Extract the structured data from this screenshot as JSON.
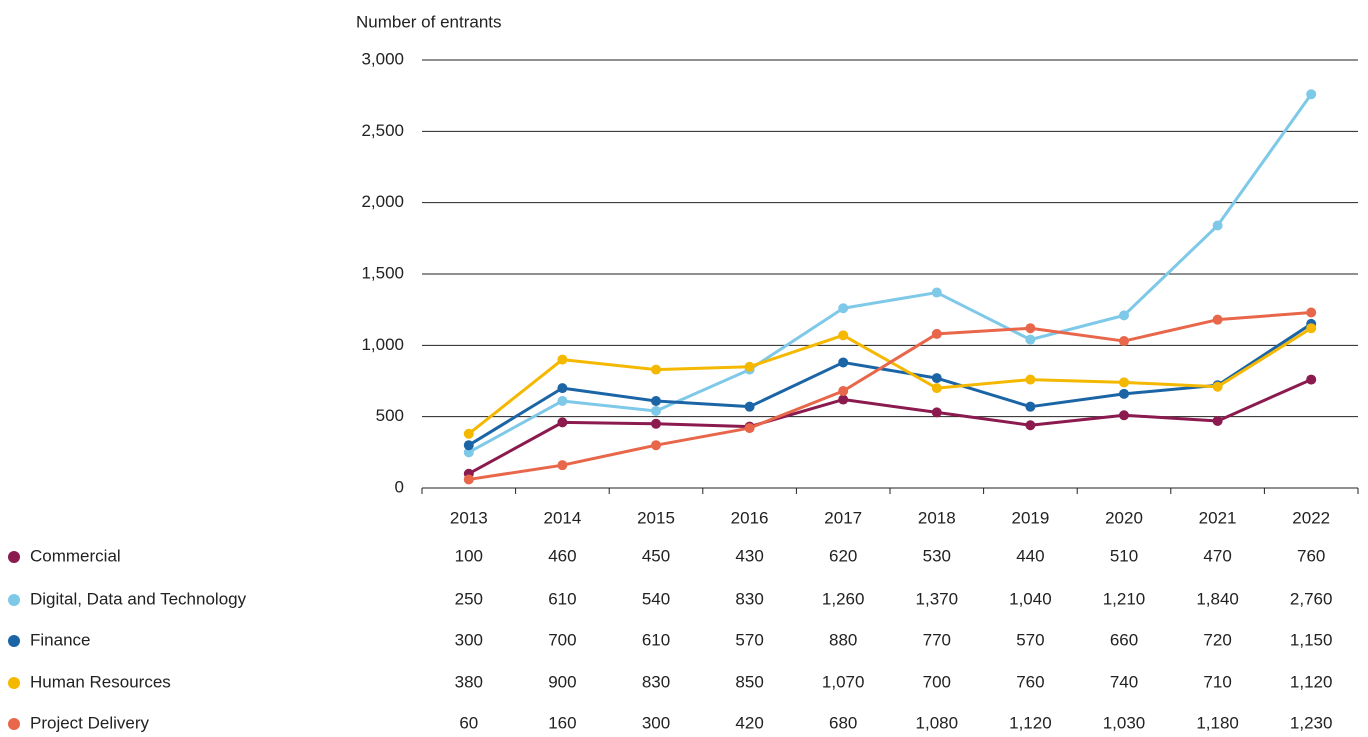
{
  "chart_data": {
    "type": "line",
    "y_axis_title": "Number of entrants",
    "categories": [
      "2013",
      "2014",
      "2015",
      "2016",
      "2017",
      "2018",
      "2019",
      "2020",
      "2021",
      "2022"
    ],
    "series": [
      {
        "name": "Commercial",
        "color": "#8b1a4f",
        "values": [
          100,
          460,
          450,
          430,
          620,
          530,
          440,
          510,
          470,
          760
        ],
        "value_labels": [
          "100",
          "460",
          "450",
          "430",
          "620",
          "530",
          "440",
          "510",
          "470",
          "760"
        ]
      },
      {
        "name": "Digital, Data and Technology",
        "color": "#7ec8e8",
        "values": [
          250,
          610,
          540,
          830,
          1260,
          1370,
          1040,
          1210,
          1840,
          2760
        ],
        "value_labels": [
          "250",
          "610",
          "540",
          "830",
          "1,260",
          "1,370",
          "1,040",
          "1,210",
          "1,840",
          "2,760"
        ]
      },
      {
        "name": "Finance",
        "color": "#1b65a6",
        "values": [
          300,
          700,
          610,
          570,
          880,
          770,
          570,
          660,
          720,
          1150
        ],
        "value_labels": [
          "300",
          "700",
          "610",
          "570",
          "880",
          "770",
          "570",
          "660",
          "720",
          "1,150"
        ]
      },
      {
        "name": "Human Resources",
        "color": "#f5b800",
        "values": [
          380,
          900,
          830,
          850,
          1070,
          700,
          760,
          740,
          710,
          1120
        ],
        "value_labels": [
          "380",
          "900",
          "830",
          "850",
          "1,070",
          "700",
          "760",
          "740",
          "710",
          "1,120"
        ]
      },
      {
        "name": "Project Delivery",
        "color": "#e8664a",
        "values": [
          60,
          160,
          300,
          420,
          680,
          1080,
          1120,
          1030,
          1180,
          1230
        ],
        "value_labels": [
          "60",
          "160",
          "300",
          "420",
          "680",
          "1,080",
          "1,120",
          "1,030",
          "1,180",
          "1,230"
        ]
      }
    ],
    "ylim": [
      0,
      3000
    ],
    "yticks": [
      0,
      500,
      {
        "value": 1000,
        "label": "1,000"
      },
      {
        "value": 1500,
        "label": "1,500"
      },
      {
        "value": 2000,
        "label": "2,000"
      },
      {
        "value": 2500,
        "label": "2,500"
      },
      {
        "value": 3000,
        "label": "3,000"
      }
    ],
    "grid": true
  }
}
